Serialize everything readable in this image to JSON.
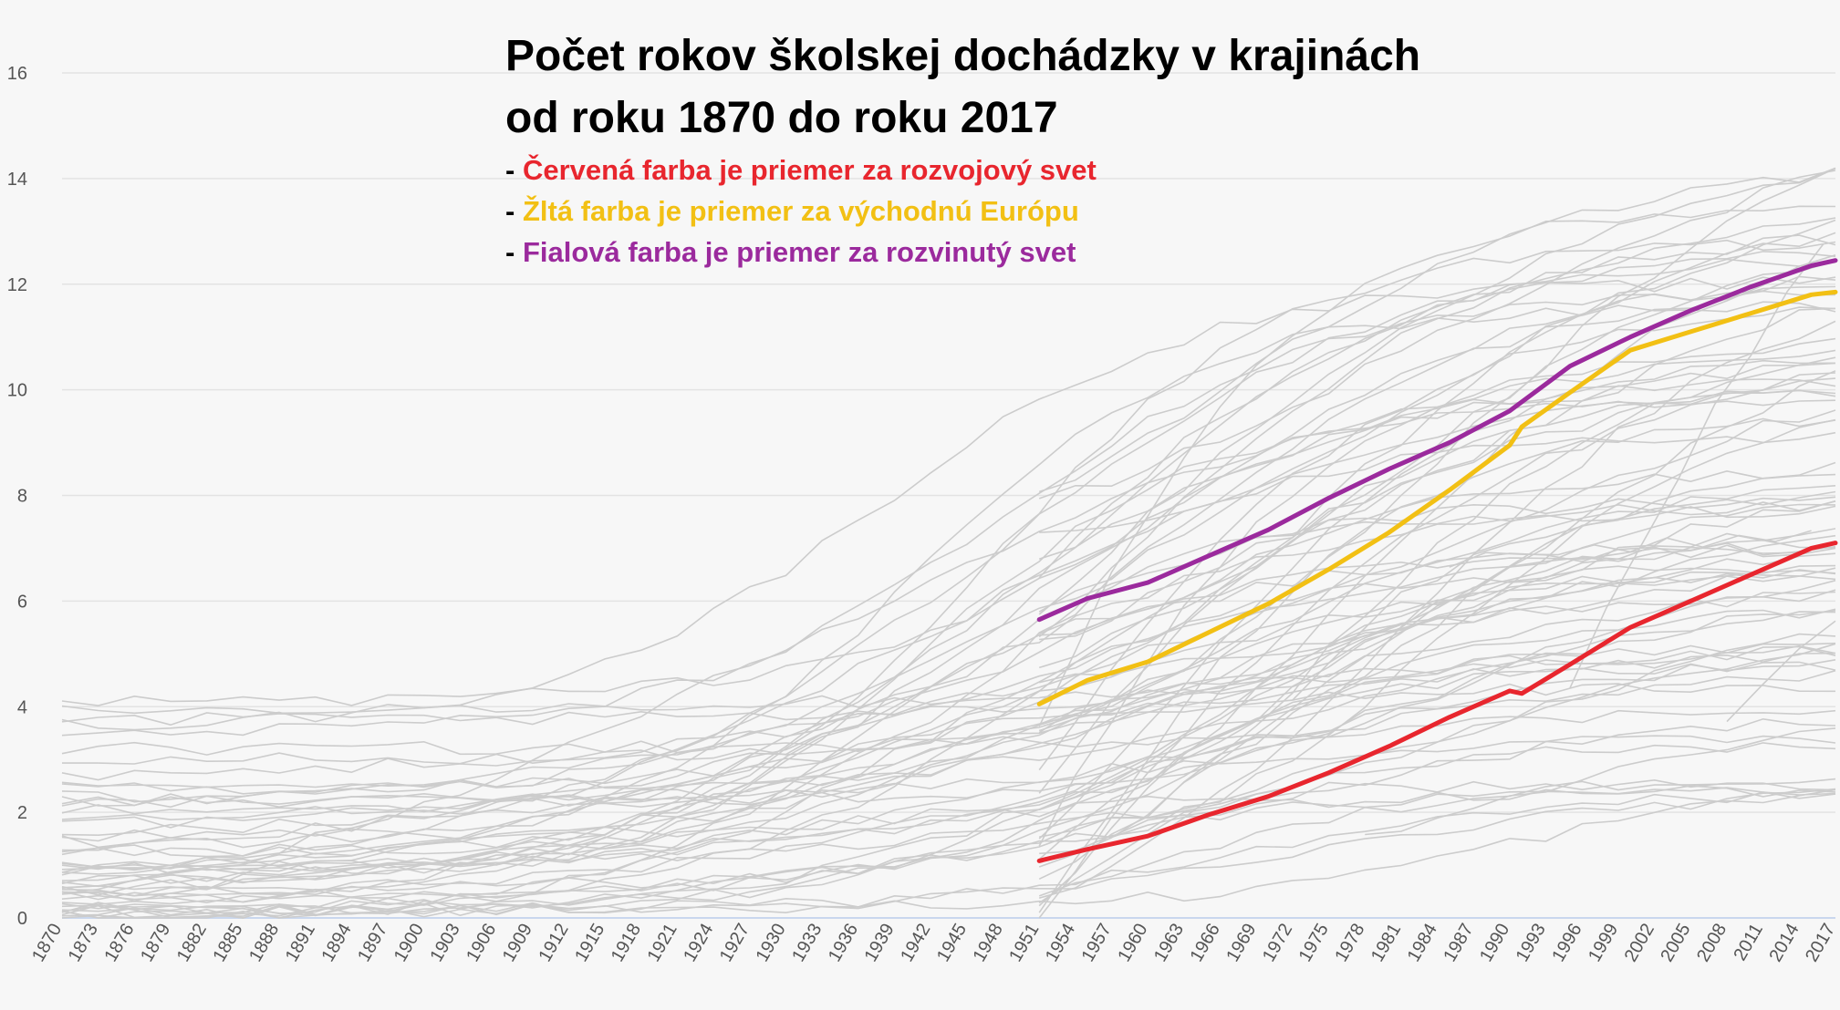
{
  "chart_data": {
    "type": "line",
    "title": "Počet rokov školskej dochádzky v krajinách",
    "subtitle": "od roku 1870 do roku 2017",
    "legend": [
      {
        "dash": "-",
        "text": "Červená farba je priemer za rozvojový svet",
        "color": "#e8262e"
      },
      {
        "dash": "-",
        "text": "Žltá farba je priemer za východnú Európu",
        "color": "#f2c014"
      },
      {
        "dash": "-",
        "text": "Fialová farba je priemer za rozvinutý svet",
        "color": "#9b2a9d"
      }
    ],
    "xlabel": "",
    "ylabel": "",
    "xlim": [
      1870,
      2017
    ],
    "ylim": [
      0,
      16
    ],
    "y_ticks": [
      0,
      2,
      4,
      6,
      8,
      10,
      12,
      14,
      16
    ],
    "x_ticks": [
      1870,
      1873,
      1876,
      1879,
      1882,
      1885,
      1888,
      1891,
      1894,
      1897,
      1900,
      1903,
      1906,
      1909,
      1912,
      1915,
      1918,
      1921,
      1924,
      1927,
      1930,
      1933,
      1936,
      1939,
      1942,
      1945,
      1948,
      1951,
      1954,
      1957,
      1960,
      1963,
      1966,
      1969,
      1972,
      1975,
      1978,
      1981,
      1984,
      1987,
      1990,
      1993,
      1996,
      1999,
      2002,
      2005,
      2008,
      2011,
      2014,
      2017
    ],
    "grid": true,
    "background_series_color": "#cccccc",
    "background_series_note_count": 90,
    "series": [
      {
        "color": "#e8262e",
        "x": [
          1951,
          1955,
          1960,
          1965,
          1970,
          1975,
          1980,
          1985,
          1990,
          1991,
          1995,
          2000,
          2005,
          2010,
          2015,
          2017
        ],
        "values": [
          1.08,
          1.3,
          1.55,
          1.95,
          2.3,
          2.75,
          3.25,
          3.8,
          4.3,
          4.25,
          4.8,
          5.5,
          6.0,
          6.5,
          7.0,
          7.1
        ]
      },
      {
        "color": "#f2c014",
        "x": [
          1951,
          1955,
          1960,
          1965,
          1970,
          1975,
          1980,
          1985,
          1990,
          1991,
          1995,
          2000,
          2005,
          2010,
          2015,
          2017
        ],
        "values": [
          4.05,
          4.5,
          4.85,
          5.4,
          5.95,
          6.6,
          7.3,
          8.1,
          8.95,
          9.3,
          9.95,
          10.75,
          11.1,
          11.45,
          11.8,
          11.85
        ]
      },
      {
        "color": "#9b2a9d",
        "x": [
          1951,
          1955,
          1960,
          1965,
          1970,
          1975,
          1980,
          1985,
          1990,
          1995,
          2000,
          2005,
          2010,
          2015,
          2017
        ],
        "values": [
          5.65,
          6.05,
          6.35,
          6.85,
          7.35,
          7.95,
          8.5,
          9.0,
          9.6,
          10.45,
          11.0,
          11.5,
          11.95,
          12.35,
          12.45
        ]
      }
    ]
  }
}
